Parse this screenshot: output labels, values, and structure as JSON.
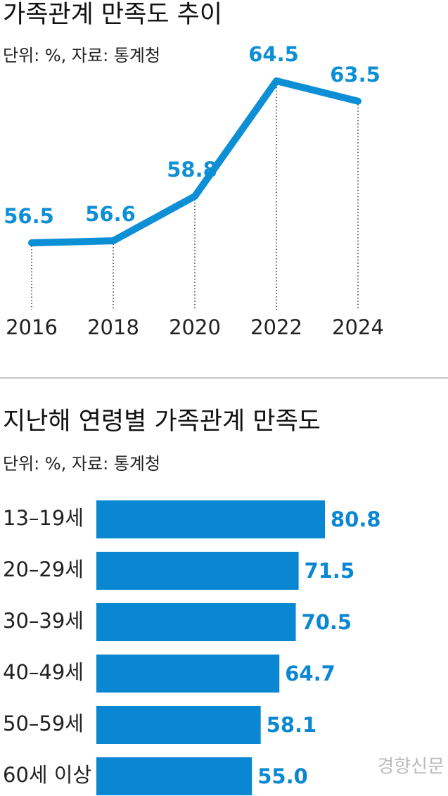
{
  "chart_data": [
    {
      "type": "line",
      "title": "가족관계 만족도 추이",
      "subtitle": "단위: %, 자료: 통계청",
      "categories": [
        "2016",
        "2018",
        "2020",
        "2022",
        "2024"
      ],
      "values": [
        56.5,
        56.6,
        58.8,
        64.5,
        63.5
      ],
      "color": "#0d8fd6"
    },
    {
      "type": "bar",
      "title": "지난해 연령별 가족관계 만족도",
      "subtitle": "단위: %, 자료: 통계청",
      "categories": [
        "13–19세",
        "20–29세",
        "30–39세",
        "40–49세",
        "50–59세",
        "60세 이상"
      ],
      "values": [
        80.8,
        71.5,
        70.5,
        64.7,
        58.1,
        55.0
      ],
      "value_labels": [
        "80.8",
        "71.5",
        "70.5",
        "64.7",
        "58.1",
        "55.0"
      ],
      "color": "#0a87d2"
    }
  ],
  "credit": "경향신문"
}
